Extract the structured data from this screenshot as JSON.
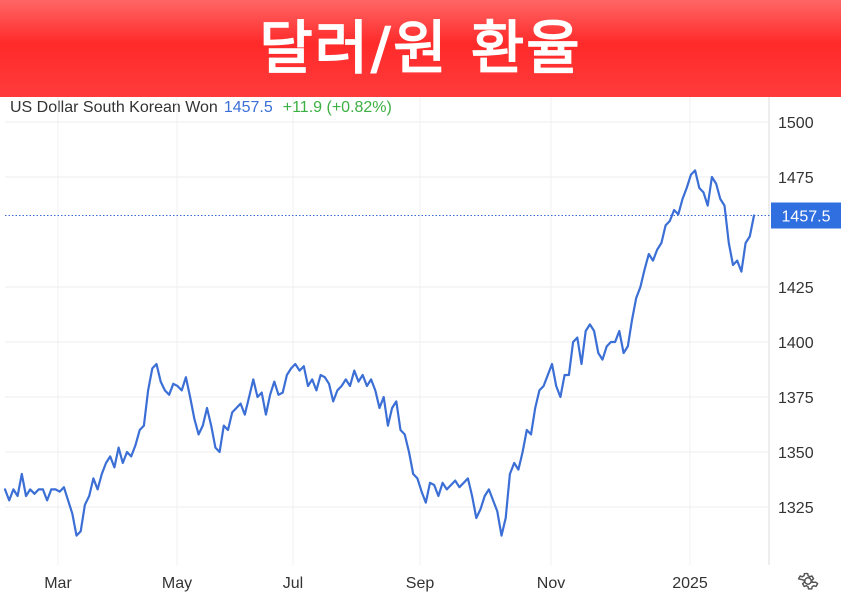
{
  "banner": {
    "title": "달러/원 환율"
  },
  "header": {
    "instrument": "US Dollar South Korean Won",
    "last": "1457.5",
    "change": "+11.9 (+0.82%)"
  },
  "colors": {
    "banner": "#ff3b3b",
    "line": "#3b6fd6",
    "change_positive": "#3cb043",
    "price_tag": "#2f6fe0"
  },
  "icons": {
    "settings": "gear-icon"
  },
  "chart_data": {
    "type": "line",
    "title": "",
    "xlabel": "",
    "ylabel": "",
    "x_ticks": [
      "Mar",
      "May",
      "Jul",
      "Sep",
      "Nov",
      "2025"
    ],
    "y_ticks": [
      1325,
      1350,
      1375,
      1400,
      1425,
      1475,
      1500
    ],
    "ylim": [
      1300,
      1510
    ],
    "grid": true,
    "current_price_label": "1457.5",
    "current_price": 1457.5,
    "series": [
      {
        "values": [
          1333,
          1328,
          1333,
          1330,
          1340,
          1330,
          1333,
          1331,
          1333,
          1333,
          1328,
          1333,
          1333,
          1332,
          1334,
          1328,
          1322,
          1312,
          1314,
          1326,
          1330,
          1338,
          1333,
          1340,
          1345,
          1348,
          1343,
          1352,
          1345,
          1350,
          1348,
          1353,
          1360,
          1362,
          1378,
          1388,
          1390,
          1382,
          1378,
          1376,
          1381,
          1380,
          1378,
          1384,
          1375,
          1365,
          1358,
          1362,
          1370,
          1362,
          1352,
          1350,
          1362,
          1360,
          1368,
          1370,
          1372,
          1367,
          1375,
          1383,
          1375,
          1377,
          1367,
          1376,
          1382,
          1376,
          1377,
          1385,
          1388,
          1390,
          1387,
          1389,
          1380,
          1383,
          1378,
          1385,
          1384,
          1381,
          1373,
          1378,
          1380,
          1383,
          1380,
          1387,
          1382,
          1385,
          1380,
          1383,
          1378,
          1370,
          1375,
          1362,
          1370,
          1373,
          1360,
          1358,
          1350,
          1340,
          1338,
          1332,
          1327,
          1336,
          1335,
          1330,
          1336,
          1333,
          1335,
          1337,
          1334,
          1336,
          1338,
          1330,
          1320,
          1324,
          1330,
          1333,
          1328,
          1323,
          1312,
          1320,
          1340,
          1345,
          1342,
          1350,
          1360,
          1358,
          1370,
          1378,
          1380,
          1385,
          1390,
          1380,
          1375,
          1385,
          1385,
          1400,
          1402,
          1390,
          1405,
          1408,
          1405,
          1395,
          1392,
          1398,
          1400,
          1400,
          1405,
          1395,
          1398,
          1410,
          1420,
          1425,
          1433,
          1440,
          1437,
          1442,
          1445,
          1453,
          1455,
          1460,
          1458,
          1465,
          1470,
          1476,
          1478,
          1470,
          1468,
          1462,
          1475,
          1472,
          1465,
          1462,
          1445,
          1435,
          1437,
          1432,
          1445,
          1448,
          1457.5
        ]
      }
    ]
  }
}
